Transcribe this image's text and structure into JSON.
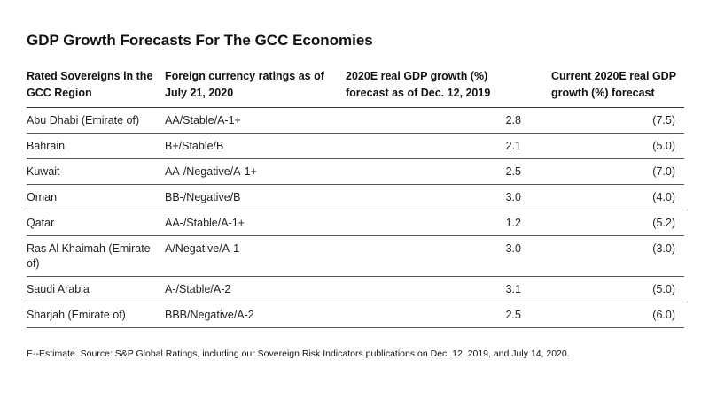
{
  "title": "GDP Growth Forecasts For The GCC Economies",
  "headers": {
    "col1": "Rated Sovereigns in the GCC Region",
    "col2": "Foreign currency ratings as of July 21, 2020",
    "col3": "2020E real GDP growth (%) forecast as of Dec. 12, 2019",
    "col4": "Current 2020E real GDP growth (%) forecast"
  },
  "rows": [
    {
      "sovereign": "Abu Dhabi (Emirate of)",
      "rating": "AA/Stable/A-1+",
      "forecast_2019": "2.8",
      "forecast_current": "(7.5)"
    },
    {
      "sovereign": "Bahrain",
      "rating": "B+/Stable/B",
      "forecast_2019": "2.1",
      "forecast_current": "(5.0)"
    },
    {
      "sovereign": "Kuwait",
      "rating": "AA-/Negative/A-1+",
      "forecast_2019": "2.5",
      "forecast_current": "(7.0)"
    },
    {
      "sovereign": "Oman",
      "rating": "BB-/Negative/B",
      "forecast_2019": "3.0",
      "forecast_current": "(4.0)"
    },
    {
      "sovereign": "Qatar",
      "rating": "AA-/Stable/A-1+",
      "forecast_2019": "1.2",
      "forecast_current": "(5.2)"
    },
    {
      "sovereign": "Ras Al Khaimah (Emirate of)",
      "rating": "A/Negative/A-1",
      "forecast_2019": "3.0",
      "forecast_current": "(3.0)"
    },
    {
      "sovereign": "Saudi Arabia",
      "rating": "A-/Stable/A-2",
      "forecast_2019": "3.1",
      "forecast_current": "(5.0)"
    },
    {
      "sovereign": "Sharjah (Emirate of)",
      "rating": "BBB/Negative/A-2",
      "forecast_2019": "2.5",
      "forecast_current": "(6.0)"
    }
  ],
  "footnote": "E--Estimate. Source: S&P Global Ratings, including our Sovereign Risk Indicators publications on Dec. 12, 2019, and July 14, 2020."
}
